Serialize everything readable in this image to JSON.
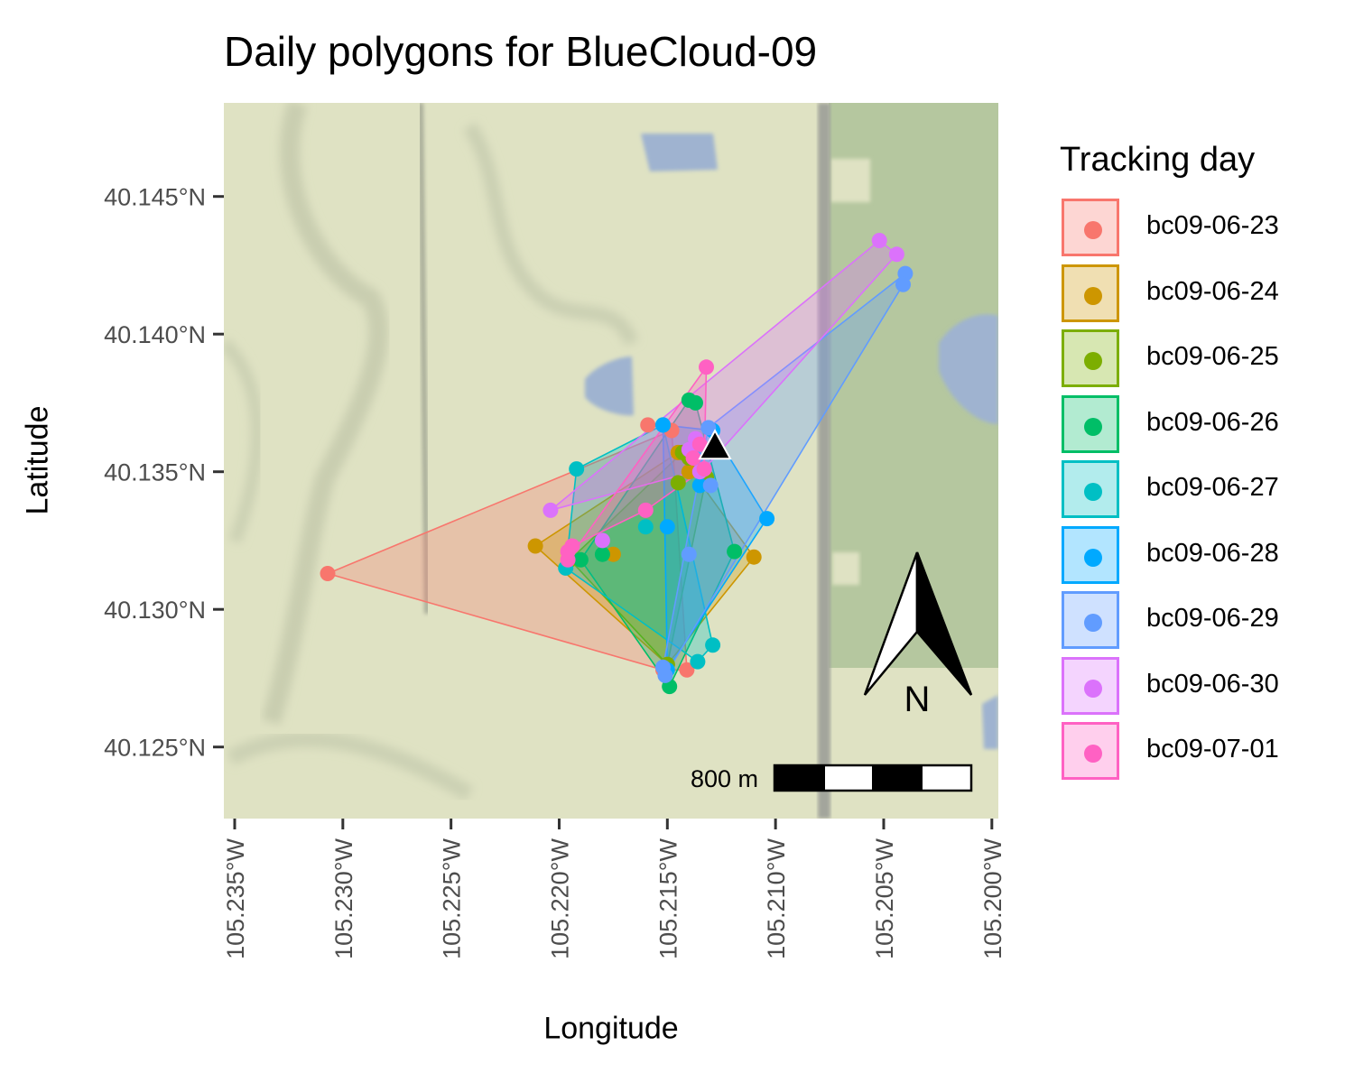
{
  "chart_data": {
    "type": "map",
    "title": "Daily polygons for BlueCloud-09",
    "xlabel": "Longitude",
    "ylabel": "Latitude",
    "xlim": [
      -105.2355,
      -105.1997
    ],
    "ylim": [
      40.1224,
      40.1484
    ],
    "x_ticks": [
      -105.235,
      -105.23,
      -105.225,
      -105.22,
      -105.215,
      -105.21,
      -105.205,
      -105.2
    ],
    "x_tick_labels": [
      "105.235°W",
      "105.230°W",
      "105.225°W",
      "105.220°W",
      "105.215°W",
      "105.210°W",
      "105.205°W",
      "105.200°W"
    ],
    "y_ticks": [
      40.145,
      40.14,
      40.135,
      40.13,
      40.125
    ],
    "y_tick_labels": [
      "40.145°N",
      "40.140°N",
      "40.135°N",
      "40.130°N",
      "40.125°N"
    ],
    "legend_title": "Tracking day",
    "legend_position": "right",
    "base_point": {
      "lon": -105.2128,
      "lat": 40.1359,
      "marker": "triangle"
    },
    "scale_bar_label": "800 m",
    "north_arrow_label": "N",
    "series": [
      {
        "name": "bc09-06-23",
        "color": "#F8766D",
        "points": [
          [
            -105.2307,
            40.1313
          ],
          [
            -105.2152,
            40.1278
          ],
          [
            -105.2141,
            40.1278
          ],
          [
            -105.2148,
            40.1365
          ],
          [
            -105.2159,
            40.1367
          ]
        ],
        "hull": [
          [
            -105.2307,
            40.1313
          ],
          [
            -105.2152,
            40.1278
          ],
          [
            -105.2141,
            40.1278
          ],
          [
            -105.2148,
            40.1365
          ]
        ]
      },
      {
        "name": "bc09-06-24",
        "color": "#CD9600",
        "points": [
          [
            -105.2211,
            40.1323
          ],
          [
            -105.211,
            40.1319
          ],
          [
            -105.2145,
            40.1357
          ],
          [
            -105.215,
            40.128
          ],
          [
            -105.214,
            40.135
          ],
          [
            -105.2175,
            40.132
          ]
        ],
        "hull": [
          [
            -105.2211,
            40.1323
          ],
          [
            -105.215,
            40.128
          ],
          [
            -105.211,
            40.1319
          ],
          [
            -105.2145,
            40.1357
          ]
        ]
      },
      {
        "name": "bc09-06-25",
        "color": "#7CAE00",
        "points": [
          [
            -105.2145,
            40.1346
          ],
          [
            -105.2143,
            40.1357
          ],
          [
            -105.2195,
            40.1318
          ],
          [
            -105.215,
            40.128
          ],
          [
            -105.2132,
            40.1348
          ],
          [
            -105.214,
            40.1355
          ]
        ],
        "hull": [
          [
            -105.2195,
            40.1318
          ],
          [
            -105.215,
            40.128
          ],
          [
            -105.2132,
            40.1348
          ],
          [
            -105.2143,
            40.1357
          ]
        ]
      },
      {
        "name": "bc09-06-26",
        "color": "#00BE67",
        "points": [
          [
            -105.214,
            40.1376
          ],
          [
            -105.2137,
            40.1375
          ],
          [
            -105.2119,
            40.1321
          ],
          [
            -105.2149,
            40.1272
          ],
          [
            -105.219,
            40.1318
          ],
          [
            -105.218,
            40.132
          ]
        ],
        "hull": [
          [
            -105.219,
            40.1318
          ],
          [
            -105.2149,
            40.1272
          ],
          [
            -105.2119,
            40.1321
          ],
          [
            -105.2137,
            40.1375
          ],
          [
            -105.214,
            40.1376
          ]
        ]
      },
      {
        "name": "bc09-06-27",
        "color": "#00BFC4",
        "points": [
          [
            -105.2192,
            40.1351
          ],
          [
            -105.2197,
            40.1315
          ],
          [
            -105.2136,
            40.1281
          ],
          [
            -105.2129,
            40.1287
          ],
          [
            -105.2152,
            40.1367
          ],
          [
            -105.216,
            40.133
          ]
        ],
        "hull": [
          [
            -105.2197,
            40.1315
          ],
          [
            -105.2136,
            40.1281
          ],
          [
            -105.2129,
            40.1287
          ],
          [
            -105.2152,
            40.1367
          ],
          [
            -105.2192,
            40.1351
          ]
        ]
      },
      {
        "name": "bc09-06-28",
        "color": "#00A9FF",
        "points": [
          [
            -105.2152,
            40.1367
          ],
          [
            -105.2104,
            40.1333
          ],
          [
            -105.215,
            40.1278
          ],
          [
            -105.2129,
            40.1365
          ],
          [
            -105.2135,
            40.1345
          ],
          [
            -105.215,
            40.133
          ]
        ],
        "hull": [
          [
            -105.2152,
            40.1367
          ],
          [
            -105.215,
            40.1278
          ],
          [
            -105.2104,
            40.1333
          ],
          [
            -105.2129,
            40.1365
          ]
        ]
      },
      {
        "name": "bc09-06-29",
        "color": "#619CFF",
        "points": [
          [
            -105.204,
            40.1422
          ],
          [
            -105.2041,
            40.1418
          ],
          [
            -105.2131,
            40.1366
          ],
          [
            -105.2151,
            40.1276
          ],
          [
            -105.2152,
            40.1279
          ],
          [
            -105.2137,
            40.1355
          ],
          [
            -105.213,
            40.1345
          ],
          [
            -105.214,
            40.132
          ]
        ],
        "hull": [
          [
            -105.2131,
            40.1366
          ],
          [
            -105.204,
            40.1422
          ],
          [
            -105.2041,
            40.1418
          ],
          [
            -105.2151,
            40.1276
          ],
          [
            -105.2152,
            40.1279
          ]
        ]
      },
      {
        "name": "bc09-06-30",
        "color": "#DB72FB",
        "points": [
          [
            -105.2052,
            40.1434
          ],
          [
            -105.2044,
            40.1429
          ],
          [
            -105.2204,
            40.1336
          ],
          [
            -105.214,
            40.1358
          ],
          [
            -105.2135,
            40.135
          ],
          [
            -105.2137,
            40.1362
          ],
          [
            -105.2133,
            40.1351
          ],
          [
            -105.218,
            40.1325
          ]
        ],
        "hull": [
          [
            -105.2204,
            40.1336
          ],
          [
            -105.2052,
            40.1434
          ],
          [
            -105.2044,
            40.1429
          ],
          [
            -105.2133,
            40.1351
          ]
        ]
      },
      {
        "name": "bc09-07-01",
        "color": "#FF61C3",
        "points": [
          [
            -105.2132,
            40.1388
          ],
          [
            -105.2196,
            40.1318
          ],
          [
            -105.2194,
            40.1323
          ],
          [
            -105.2196,
            40.1321
          ],
          [
            -105.216,
            40.1336
          ],
          [
            -105.2133,
            40.1351
          ],
          [
            -105.2135,
            40.136
          ],
          [
            -105.2138,
            40.1355
          ]
        ],
        "hull": [
          [
            -105.2196,
            40.1318
          ],
          [
            -105.2132,
            40.1388
          ],
          [
            -105.2133,
            40.1351
          ],
          [
            -105.216,
            40.1336
          ],
          [
            -105.2194,
            40.1323
          ]
        ]
      }
    ]
  }
}
